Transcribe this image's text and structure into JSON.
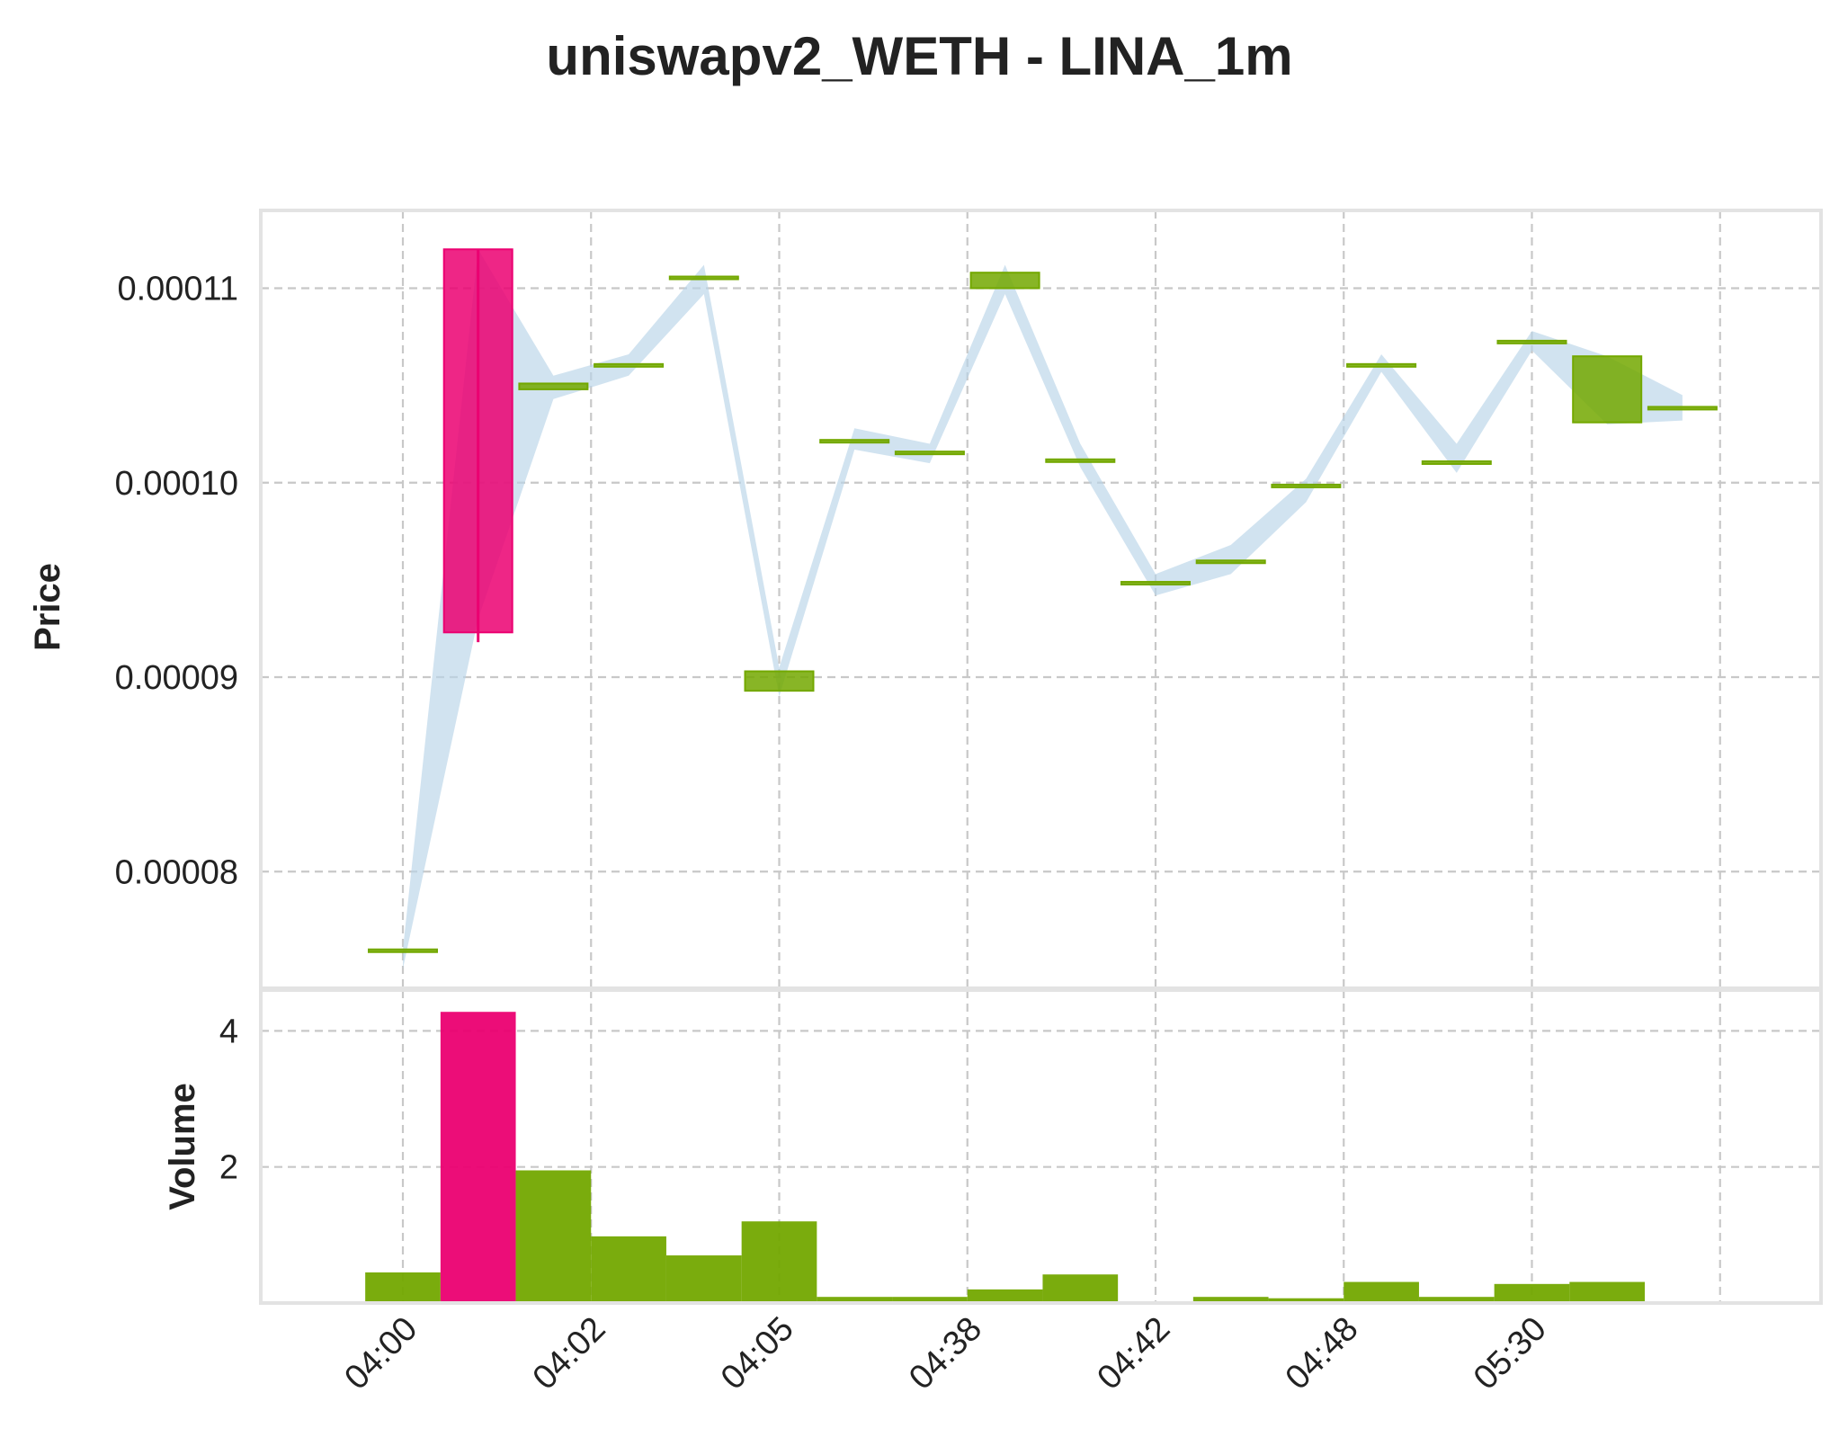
{
  "chart_data": {
    "type": "candlestick",
    "title": "uniswapv2_WETH - LINA_1m",
    "colors": {
      "up": "#73a800",
      "down": "#eb0071",
      "band": "#b8d4e8",
      "grid": "#c8c8c8",
      "frame": "#e3e3e3"
    },
    "price_panel": {
      "ylabel": "Price",
      "ylim": [
        7.4e-05,
        0.000114
      ],
      "yticks": [
        {
          "value": 8e-05,
          "label": "0.00008"
        },
        {
          "value": 9e-05,
          "label": "0.00009"
        },
        {
          "value": 0.0001,
          "label": "0.00010"
        },
        {
          "value": 0.00011,
          "label": "0.00011"
        }
      ],
      "band_upper": [
        7.6e-05,
        0.000112,
        0.0001055,
        0.0001066,
        0.0001112,
        9.05e-05,
        0.0001028,
        0.000102,
        0.0001112,
        0.000102,
        9.53e-05,
        9.68e-05,
        0.0001002,
        0.0001066,
        0.000102,
        0.0001078,
        0.0001065,
        0.0001045
      ],
      "band_lower": [
        7.5e-05,
        9.3e-05,
        0.0001043,
        0.0001055,
        0.0001097,
        8.9e-05,
        0.0001017,
        0.000101,
        0.0001097,
        0.0001008,
        9.42e-05,
        9.53e-05,
        9.9e-05,
        0.0001057,
        0.0001005,
        0.0001068,
        0.000103,
        0.0001032
      ],
      "grid": true
    },
    "volume_panel": {
      "ylabel": "Volume",
      "ylim": [
        0,
        4.6
      ],
      "yticks": [
        {
          "value": 2,
          "label": "2"
        },
        {
          "value": 4,
          "label": "4"
        }
      ],
      "grid": true
    },
    "x_labels": [
      {
        "index": 0,
        "label": "04:00"
      },
      {
        "index": 2.5,
        "label": "04:02"
      },
      {
        "index": 5,
        "label": "04:05"
      },
      {
        "index": 7.5,
        "label": "04:38"
      },
      {
        "index": 10,
        "label": "04:42"
      },
      {
        "index": 12.5,
        "label": "04:48"
      },
      {
        "index": 15,
        "label": "05:30"
      }
    ],
    "x_gridlines": [
      0,
      2.5,
      5,
      7.5,
      10,
      12.5,
      15,
      17.5
    ],
    "candles": [
      {
        "open": 7.6e-05,
        "high": 7.6e-05,
        "low": 7.6e-05,
        "close": 7.6e-05,
        "volume": 0.45
      },
      {
        "open": 0.000112,
        "high": 0.000112,
        "low": 9.18e-05,
        "close": 9.23e-05,
        "volume": 4.28
      },
      {
        "open": 0.0001048,
        "high": 0.0001051,
        "low": 0.0001048,
        "close": 0.0001051,
        "volume": 1.95
      },
      {
        "open": 0.0001061,
        "high": 0.0001061,
        "low": 0.0001061,
        "close": 0.0001061,
        "volume": 0.98
      },
      {
        "open": 0.0001106,
        "high": 0.0001106,
        "low": 0.0001106,
        "close": 0.0001106,
        "volume": 0.7
      },
      {
        "open": 8.93e-05,
        "high": 9.03e-05,
        "low": 8.93e-05,
        "close": 9.03e-05,
        "volume": 1.2
      },
      {
        "open": 0.0001022,
        "high": 0.0001022,
        "low": 0.0001022,
        "close": 0.0001022,
        "volume": 0.09
      },
      {
        "open": 0.0001016,
        "high": 0.0001016,
        "low": 0.0001016,
        "close": 0.0001016,
        "volume": 0.09
      },
      {
        "open": 0.00011,
        "high": 0.0001108,
        "low": 0.00011,
        "close": 0.0001108,
        "volume": 0.2
      },
      {
        "open": 0.0001012,
        "high": 0.0001012,
        "low": 0.0001012,
        "close": 0.0001012,
        "volume": 0.42
      },
      {
        "open": 9.49e-05,
        "high": 9.49e-05,
        "low": 9.49e-05,
        "close": 9.49e-05,
        "volume": 0.0
      },
      {
        "open": 9.6e-05,
        "high": 9.6e-05,
        "low": 9.6e-05,
        "close": 9.6e-05,
        "volume": 0.09
      },
      {
        "open": 9.99e-05,
        "high": 9.99e-05,
        "low": 9.99e-05,
        "close": 9.99e-05,
        "volume": 0.07
      },
      {
        "open": 0.0001061,
        "high": 0.0001061,
        "low": 0.0001061,
        "close": 0.0001061,
        "volume": 0.31
      },
      {
        "open": 0.0001011,
        "high": 0.0001011,
        "low": 0.0001011,
        "close": 0.0001011,
        "volume": 0.09
      },
      {
        "open": 0.0001073,
        "high": 0.0001073,
        "low": 0.0001073,
        "close": 0.0001073,
        "volume": 0.28
      },
      {
        "open": 0.0001031,
        "high": 0.0001065,
        "low": 0.0001031,
        "close": 0.0001065,
        "volume": 0.31
      },
      {
        "open": 0.0001039,
        "high": 0.0001039,
        "low": 0.0001039,
        "close": 0.0001039,
        "volume": 0.0
      }
    ]
  }
}
